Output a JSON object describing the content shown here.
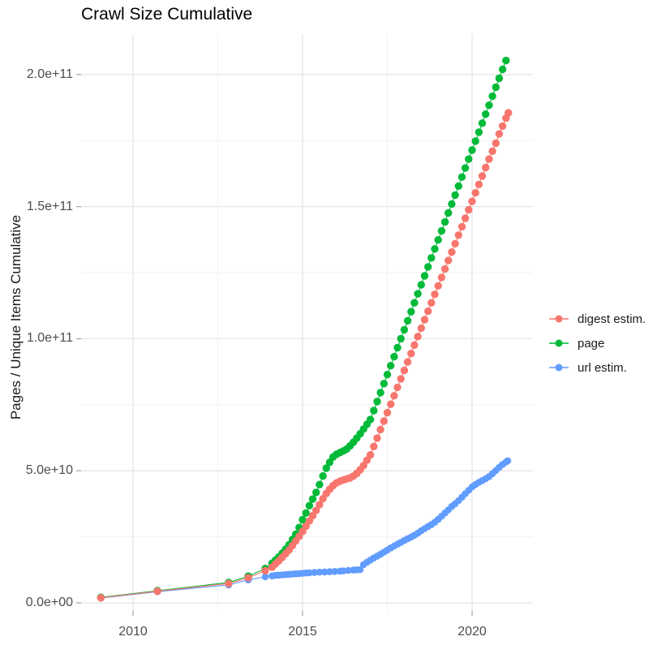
{
  "title": "Crawl Size Cumulative",
  "y_axis": {
    "title": "Pages / Unique Items Cumulative",
    "tick_labels": [
      "0.0e+00",
      "5.0e+10",
      "1.0e+11",
      "1.5e+11",
      "2.0e+11"
    ],
    "tick_values_billions": [
      0,
      50,
      100,
      150,
      200
    ],
    "minor_gridlines_billions": [
      25,
      75,
      125,
      175
    ]
  },
  "x_axis": {
    "tick_labels": [
      "2010",
      "2015",
      "2020"
    ],
    "tick_values": [
      2010,
      2015,
      2020
    ],
    "minor_gridlines": [
      2012.5,
      2017.5
    ]
  },
  "legend": {
    "items": [
      {
        "label": "digest estim.",
        "color": "#F8766D"
      },
      {
        "label": "page",
        "color": "#00BA38"
      },
      {
        "label": "url estim.",
        "color": "#619CFF"
      }
    ]
  },
  "colors": {
    "background": "#ffffff",
    "major_gridline": "#e3e3e3",
    "minor_gridline": "#f1f1f1",
    "tick_mark": "#b0b0b0",
    "tick_text": "#4d4d4d"
  },
  "chart_data": {
    "type": "scatter",
    "title": "Crawl Size Cumulative",
    "xlabel": "",
    "ylabel": "Pages / Unique Items Cumulative",
    "xlim": [
      2008.4,
      2021.8
    ],
    "ylim": [
      0,
      218000000000.0
    ],
    "y_unit_note": "point y values are billions of pages/items (multiply by 1e9)",
    "grid": true,
    "legend_position": "right",
    "series": [
      {
        "name": "digest estim.",
        "color": "#F8766D",
        "points": [
          [
            2009.05,
            1.9
          ],
          [
            2010.72,
            4.4
          ],
          [
            2012.82,
            7.3
          ],
          [
            2013.4,
            9.5
          ],
          [
            2013.9,
            12.2
          ],
          [
            2014.1,
            13.5
          ],
          [
            2014.2,
            14.7
          ],
          [
            2014.3,
            15.9
          ],
          [
            2014.4,
            17.2
          ],
          [
            2014.5,
            18.6
          ],
          [
            2014.6,
            20
          ],
          [
            2014.7,
            21.7
          ],
          [
            2014.8,
            23.4
          ],
          [
            2014.9,
            25.2
          ],
          [
            2015.0,
            27
          ],
          [
            2015.1,
            29
          ],
          [
            2015.2,
            31
          ],
          [
            2015.3,
            33
          ],
          [
            2015.4,
            35
          ],
          [
            2015.5,
            37.2
          ],
          [
            2015.6,
            39.4
          ],
          [
            2015.7,
            41.4
          ],
          [
            2015.8,
            43
          ],
          [
            2015.9,
            44.4
          ],
          [
            2016.0,
            45.4
          ],
          [
            2016.1,
            46
          ],
          [
            2016.2,
            46.5
          ],
          [
            2016.3,
            46.9
          ],
          [
            2016.4,
            47.3
          ],
          [
            2016.5,
            48
          ],
          [
            2016.6,
            49
          ],
          [
            2016.7,
            50.4
          ],
          [
            2016.8,
            52
          ],
          [
            2016.9,
            54
          ],
          [
            2017.0,
            56
          ],
          [
            2017.1,
            59.2
          ],
          [
            2017.2,
            62.4
          ],
          [
            2017.3,
            65.6
          ],
          [
            2017.4,
            68.8
          ],
          [
            2017.5,
            72
          ],
          [
            2017.6,
            75.2
          ],
          [
            2017.7,
            78.4
          ],
          [
            2017.8,
            81.6
          ],
          [
            2017.9,
            84.8
          ],
          [
            2018.0,
            88
          ],
          [
            2018.1,
            91.2
          ],
          [
            2018.2,
            94.4
          ],
          [
            2018.3,
            97.6
          ],
          [
            2018.4,
            100.8
          ],
          [
            2018.5,
            104
          ],
          [
            2018.6,
            107.2
          ],
          [
            2018.7,
            110.4
          ],
          [
            2018.8,
            113.6
          ],
          [
            2018.9,
            116.8
          ],
          [
            2019.0,
            120
          ],
          [
            2019.1,
            123.2
          ],
          [
            2019.2,
            126.4
          ],
          [
            2019.3,
            129.6
          ],
          [
            2019.4,
            132.8
          ],
          [
            2019.5,
            136
          ],
          [
            2019.6,
            139.2
          ],
          [
            2019.7,
            142.4
          ],
          [
            2019.8,
            145.6
          ],
          [
            2019.9,
            148.8
          ],
          [
            2020.0,
            152
          ],
          [
            2020.1,
            155.2
          ],
          [
            2020.2,
            158.4
          ],
          [
            2020.3,
            161.6
          ],
          [
            2020.4,
            164.8
          ],
          [
            2020.5,
            168
          ],
          [
            2020.6,
            171
          ],
          [
            2020.7,
            174
          ],
          [
            2020.8,
            177.5
          ],
          [
            2020.9,
            180.5
          ],
          [
            2021.0,
            183.5
          ],
          [
            2021.07,
            185.5
          ]
        ]
      },
      {
        "name": "page",
        "color": "#00BA38",
        "points": [
          [
            2009.05,
            2.1
          ],
          [
            2010.72,
            4.6
          ],
          [
            2012.82,
            7.7
          ],
          [
            2013.4,
            10.1
          ],
          [
            2013.9,
            13
          ],
          [
            2014.1,
            15
          ],
          [
            2014.2,
            16.2
          ],
          [
            2014.3,
            17.4
          ],
          [
            2014.4,
            18.8
          ],
          [
            2014.5,
            20.3
          ],
          [
            2014.6,
            22
          ],
          [
            2014.7,
            24
          ],
          [
            2014.8,
            26
          ],
          [
            2014.9,
            28.5
          ],
          [
            2015.0,
            31.5
          ],
          [
            2015.1,
            34
          ],
          [
            2015.2,
            36.8
          ],
          [
            2015.3,
            39.3
          ],
          [
            2015.4,
            41.8
          ],
          [
            2015.5,
            44.8
          ],
          [
            2015.6,
            48
          ],
          [
            2015.7,
            51
          ],
          [
            2015.8,
            53.2
          ],
          [
            2015.9,
            55.2
          ],
          [
            2016.0,
            56.2
          ],
          [
            2016.1,
            56.9
          ],
          [
            2016.2,
            57.5
          ],
          [
            2016.3,
            58.2
          ],
          [
            2016.4,
            59.4
          ],
          [
            2016.5,
            60.8
          ],
          [
            2016.6,
            62.4
          ],
          [
            2016.7,
            64
          ],
          [
            2016.8,
            65.8
          ],
          [
            2016.9,
            67.6
          ],
          [
            2017.0,
            69.4
          ],
          [
            2017.1,
            72.8
          ],
          [
            2017.2,
            76.2
          ],
          [
            2017.3,
            79.6
          ],
          [
            2017.4,
            83
          ],
          [
            2017.5,
            86.4
          ],
          [
            2017.6,
            89.8
          ],
          [
            2017.7,
            93.2
          ],
          [
            2017.8,
            96.6
          ],
          [
            2017.9,
            100
          ],
          [
            2018.0,
            103.4
          ],
          [
            2018.1,
            106.8
          ],
          [
            2018.2,
            110.2
          ],
          [
            2018.3,
            113.6
          ],
          [
            2018.4,
            117
          ],
          [
            2018.5,
            120.4
          ],
          [
            2018.6,
            123.8
          ],
          [
            2018.7,
            127.2
          ],
          [
            2018.8,
            130.6
          ],
          [
            2018.9,
            134
          ],
          [
            2019.0,
            137.4
          ],
          [
            2019.1,
            140.8
          ],
          [
            2019.2,
            144.2
          ],
          [
            2019.3,
            147.6
          ],
          [
            2019.4,
            151
          ],
          [
            2019.5,
            154.4
          ],
          [
            2019.6,
            157.8
          ],
          [
            2019.7,
            161.2
          ],
          [
            2019.8,
            164.6
          ],
          [
            2019.9,
            168
          ],
          [
            2020.0,
            171.4
          ],
          [
            2020.1,
            174.8
          ],
          [
            2020.2,
            178.2
          ],
          [
            2020.3,
            181.6
          ],
          [
            2020.4,
            185
          ],
          [
            2020.5,
            188.4
          ],
          [
            2020.6,
            191.8
          ],
          [
            2020.7,
            195.2
          ],
          [
            2020.8,
            198.6
          ],
          [
            2020.9,
            202
          ],
          [
            2021.0,
            205.3
          ]
        ]
      },
      {
        "name": "url estim.",
        "color": "#619CFF",
        "points": [
          [
            2009.05,
            1.8
          ],
          [
            2010.72,
            4.2
          ],
          [
            2012.82,
            6.8
          ],
          [
            2013.4,
            8.7
          ],
          [
            2013.9,
            9.9
          ],
          [
            2014.1,
            10.2
          ],
          [
            2014.2,
            10.4
          ],
          [
            2014.3,
            10.5
          ],
          [
            2014.4,
            10.6
          ],
          [
            2014.5,
            10.7
          ],
          [
            2014.6,
            10.8
          ],
          [
            2014.7,
            10.9
          ],
          [
            2014.8,
            11
          ],
          [
            2014.9,
            11.1
          ],
          [
            2015.0,
            11.2
          ],
          [
            2015.1,
            11.3
          ],
          [
            2015.2,
            11.4
          ],
          [
            2015.35,
            11.5
          ],
          [
            2015.5,
            11.6
          ],
          [
            2015.65,
            11.7
          ],
          [
            2015.8,
            11.8
          ],
          [
            2015.95,
            11.9
          ],
          [
            2016.1,
            12
          ],
          [
            2016.2,
            12.1
          ],
          [
            2016.35,
            12.3
          ],
          [
            2016.5,
            12.4
          ],
          [
            2016.6,
            12.5
          ],
          [
            2016.7,
            12.6
          ],
          [
            2016.8,
            14.5
          ],
          [
            2016.9,
            15.4
          ],
          [
            2017.0,
            16.2
          ],
          [
            2017.1,
            17
          ],
          [
            2017.2,
            17.7
          ],
          [
            2017.3,
            18.4
          ],
          [
            2017.4,
            19.2
          ],
          [
            2017.5,
            20
          ],
          [
            2017.6,
            20.8
          ],
          [
            2017.7,
            21.5
          ],
          [
            2017.8,
            22.2
          ],
          [
            2017.9,
            22.9
          ],
          [
            2018.0,
            23.6
          ],
          [
            2018.1,
            24.3
          ],
          [
            2018.2,
            24.9
          ],
          [
            2018.3,
            25.6
          ],
          [
            2018.4,
            26.4
          ],
          [
            2018.5,
            27.3
          ],
          [
            2018.6,
            28.1
          ],
          [
            2018.7,
            28.9
          ],
          [
            2018.8,
            29.6
          ],
          [
            2018.9,
            30.5
          ],
          [
            2019.0,
            31.6
          ],
          [
            2019.1,
            32.8
          ],
          [
            2019.2,
            34
          ],
          [
            2019.3,
            35.2
          ],
          [
            2019.4,
            36.5
          ],
          [
            2019.5,
            37.5
          ],
          [
            2019.6,
            38.7
          ],
          [
            2019.7,
            40
          ],
          [
            2019.8,
            41.3
          ],
          [
            2019.9,
            42.6
          ],
          [
            2020.0,
            43.9
          ],
          [
            2020.1,
            44.8
          ],
          [
            2020.2,
            45.6
          ],
          [
            2020.3,
            46.3
          ],
          [
            2020.4,
            47
          ],
          [
            2020.5,
            47.8
          ],
          [
            2020.6,
            48.9
          ],
          [
            2020.7,
            50.1
          ],
          [
            2020.8,
            51.3
          ],
          [
            2020.9,
            52.4
          ],
          [
            2021.0,
            53.3
          ],
          [
            2021.05,
            53.8
          ]
        ]
      }
    ]
  }
}
